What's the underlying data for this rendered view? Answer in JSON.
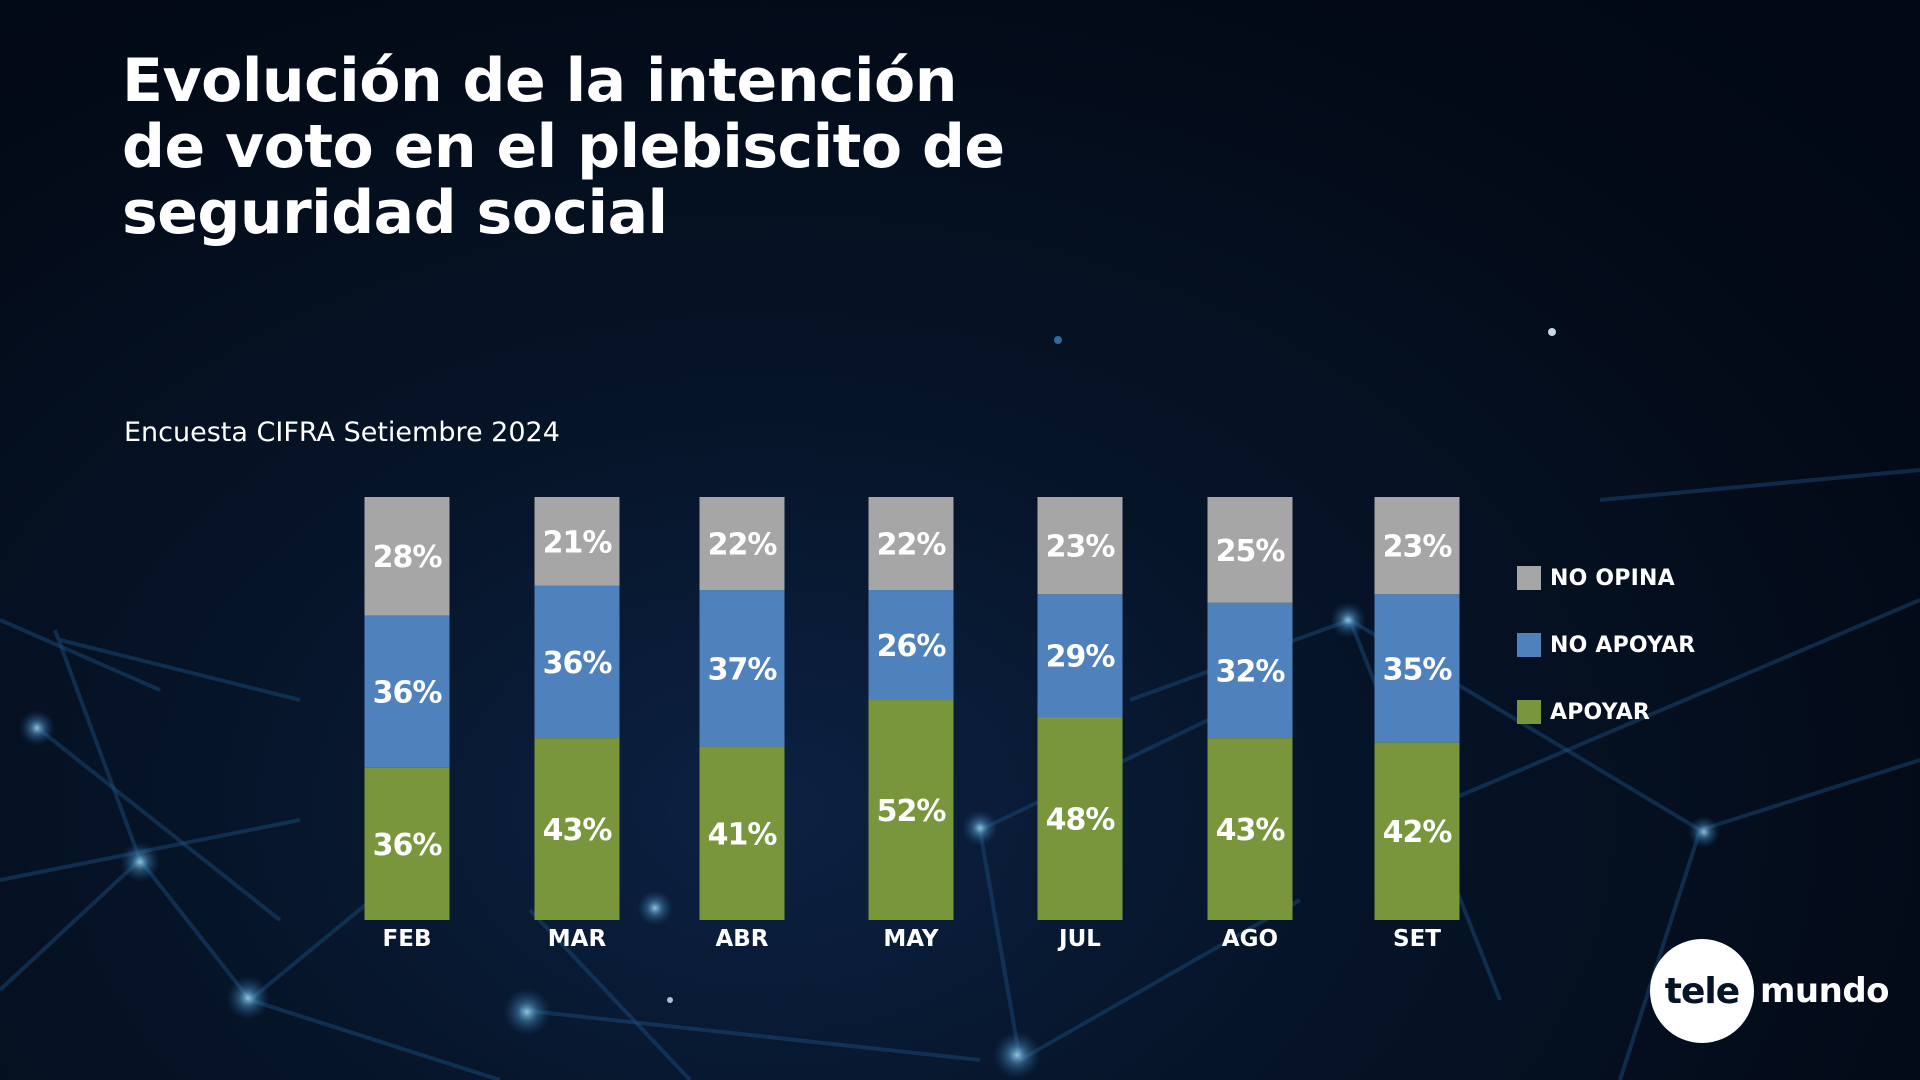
{
  "header": {
    "title": "Evolución de la intención de voto en el plebiscito de seguridad social",
    "subtitle": "Encuesta CIFRA Setiembre 2024"
  },
  "legend": [
    {
      "label": "NO OPINA",
      "color": "#a6a6a6"
    },
    {
      "label": "NO APOYAR",
      "color": "#4f81bd"
    },
    {
      "label": "APOYAR",
      "color": "#7a963d"
    }
  ],
  "logo": {
    "part1": "tele",
    "part2": "mundo"
  },
  "chart_data": {
    "type": "bar",
    "stacked": true,
    "title": "Evolución de la intención de voto en el plebiscito de seguridad social",
    "subtitle": "Encuesta CIFRA Setiembre 2024",
    "xlabel": "",
    "ylabel": "",
    "ylim": [
      0,
      100
    ],
    "grid": false,
    "legend_position": "right",
    "categories": [
      "FEB",
      "MAR",
      "ABR",
      "MAY",
      "JUL",
      "AGO",
      "SET"
    ],
    "series": [
      {
        "name": "APOYAR",
        "color": "#7a963d",
        "values": [
          36,
          43,
          41,
          52,
          48,
          43,
          42
        ]
      },
      {
        "name": "NO APOYAR",
        "color": "#4f81bd",
        "values": [
          36,
          36,
          37,
          26,
          29,
          32,
          35
        ]
      },
      {
        "name": "NO OPINA",
        "color": "#a6a6a6",
        "values": [
          28,
          21,
          22,
          22,
          23,
          25,
          23
        ]
      }
    ],
    "value_suffix": "%"
  }
}
